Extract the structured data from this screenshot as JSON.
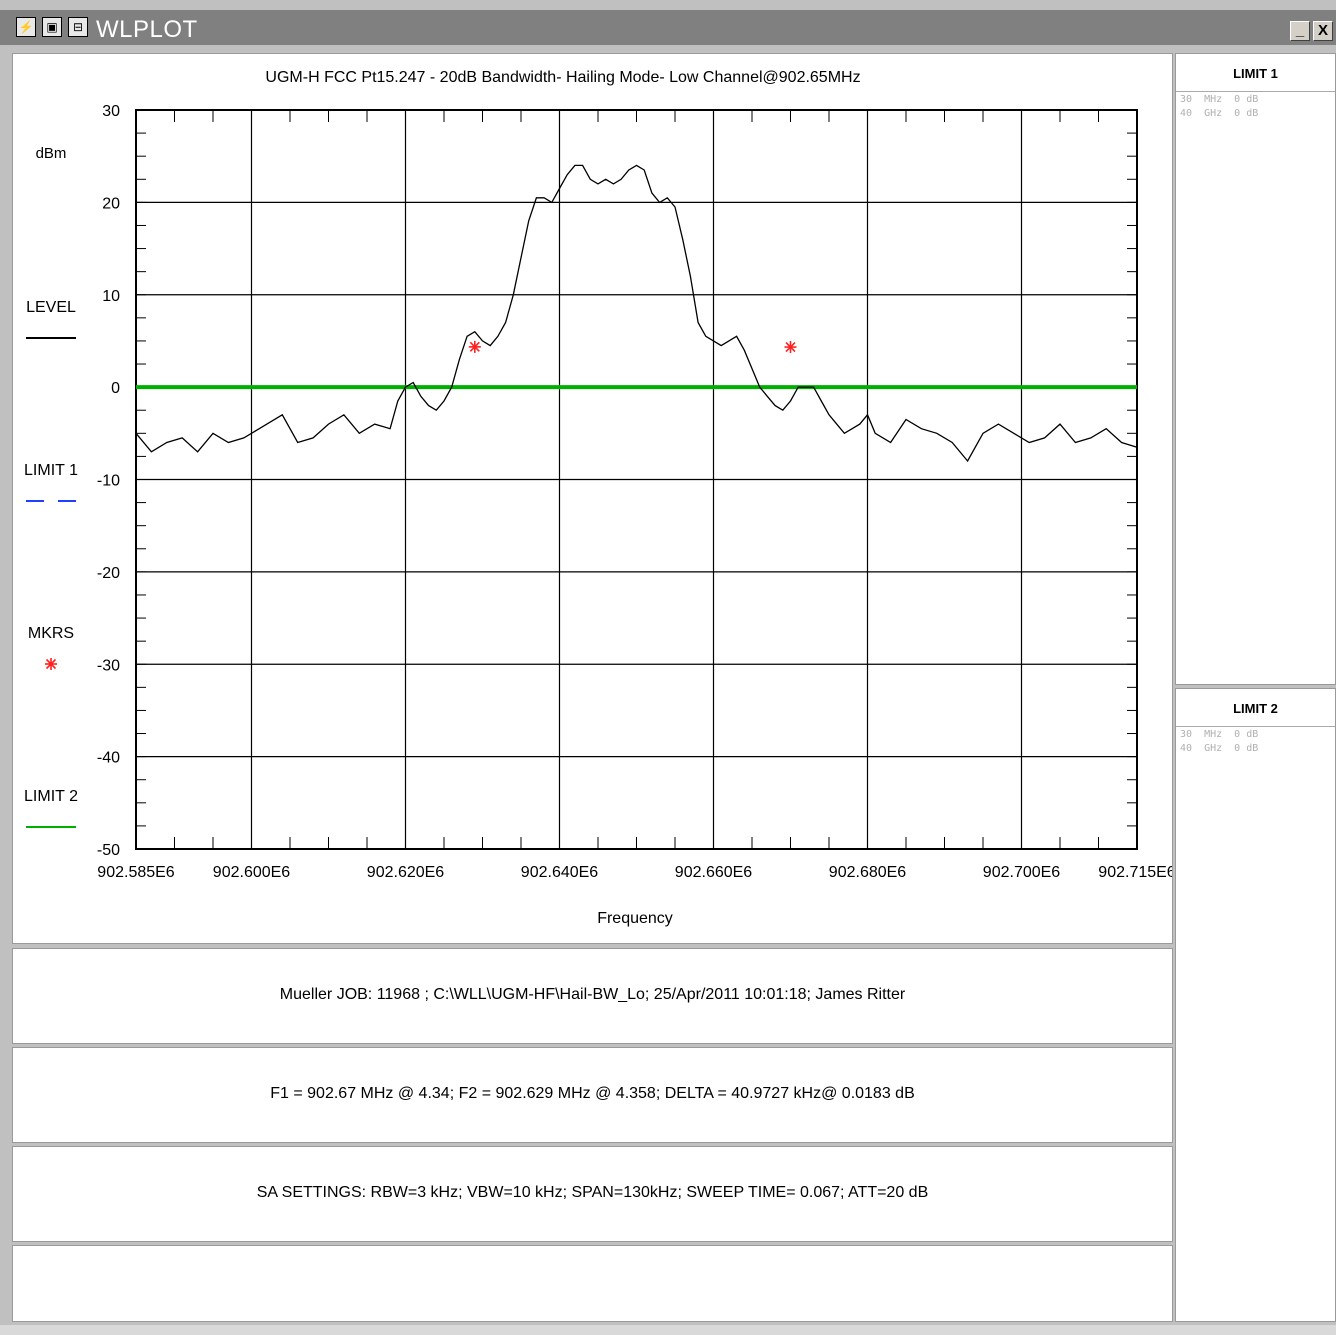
{
  "window": {
    "title": "WLPLOT",
    "title_icons": [
      "chart-app-icon",
      "window-icon",
      "restore-icon"
    ],
    "minimize_label": "_",
    "close_label": "X"
  },
  "chart_data": {
    "type": "line",
    "title": "UGM-H FCC Pt15.247 - 20dB Bandwidth- Hailing Mode- Low Channel@902.65MHz",
    "xlabel": "Frequency",
    "ylabel": "dBm",
    "xlim": [
      902.585,
      902.715
    ],
    "ylim": [
      -50,
      30
    ],
    "y_ticks": [
      30,
      20,
      10,
      0,
      -10,
      -20,
      -30,
      -40,
      -50
    ],
    "x_tick_labels": [
      {
        "x": 902.585,
        "label": "902.585E6"
      },
      {
        "x": 902.6,
        "label": "902.600E6"
      },
      {
        "x": 902.62,
        "label": "902.620E6"
      },
      {
        "x": 902.64,
        "label": "902.640E6"
      },
      {
        "x": 902.66,
        "label": "902.660E6"
      },
      {
        "x": 902.68,
        "label": "902.680E6"
      },
      {
        "x": 902.7,
        "label": "902.700E6"
      },
      {
        "x": 902.715,
        "label": "902.715E6"
      }
    ],
    "grid": true,
    "series": [
      {
        "name": "LEVEL",
        "color": "#000000",
        "x": [
          902.585,
          902.587,
          902.589,
          902.591,
          902.593,
          902.595,
          902.597,
          902.599,
          902.601,
          902.602,
          902.604,
          902.606,
          902.608,
          902.61,
          902.612,
          902.614,
          902.616,
          902.618,
          902.619,
          902.62,
          902.621,
          902.622,
          902.623,
          902.624,
          902.625,
          902.626,
          902.627,
          902.628,
          902.629,
          902.63,
          902.631,
          902.632,
          902.633,
          902.634,
          902.635,
          902.636,
          902.637,
          902.638,
          902.639,
          902.64,
          902.641,
          902.642,
          902.643,
          902.644,
          902.645,
          902.646,
          902.647,
          902.648,
          902.649,
          902.65,
          902.651,
          902.652,
          902.653,
          902.654,
          902.655,
          902.656,
          902.657,
          902.658,
          902.659,
          902.66,
          902.661,
          902.662,
          902.663,
          902.664,
          902.665,
          902.666,
          902.667,
          902.668,
          902.669,
          902.67,
          902.671,
          902.672,
          902.673,
          902.674,
          902.675,
          902.676,
          902.677,
          902.678,
          902.679,
          902.68,
          902.681,
          902.683,
          902.685,
          902.687,
          902.689,
          902.691,
          902.693,
          902.695,
          902.697,
          902.699,
          902.701,
          902.703,
          902.705,
          902.707,
          902.709,
          902.711,
          902.713,
          902.715
        ],
        "y": [
          -5,
          -7,
          -6,
          -5.5,
          -7,
          -5,
          -6,
          -5.5,
          -4.5,
          -4,
          -3,
          -6,
          -5.5,
          -4,
          -3,
          -5,
          -4,
          -4.5,
          -1.5,
          0,
          0.5,
          -1,
          -2,
          -2.5,
          -1.5,
          0,
          3,
          5.5,
          6,
          5,
          4.5,
          5.5,
          7,
          10,
          14,
          18,
          20.5,
          20.5,
          20,
          21.5,
          23,
          24,
          24,
          22.5,
          22,
          22.5,
          22,
          22.5,
          23.5,
          24,
          23.5,
          21,
          20,
          20.5,
          19.5,
          16,
          12,
          7,
          5.5,
          5,
          4.5,
          5,
          5.5,
          4,
          2,
          0,
          -1,
          -2,
          -2.5,
          -1.5,
          0,
          0,
          0,
          -1.5,
          -3,
          -4,
          -5,
          -4.5,
          -4,
          -3,
          -5,
          -6,
          -3.5,
          -4.5,
          -5,
          -6,
          -8,
          -5,
          -4,
          -5,
          -6,
          -5.5,
          -4,
          -6,
          -5.5,
          -4.5,
          -6,
          -6.5
        ]
      },
      {
        "name": "LIMIT 1",
        "color": "#1e40ff",
        "style": "dashed",
        "x": [],
        "y": []
      },
      {
        "name": "LIMIT 2",
        "color": "#00b000",
        "style": "solid",
        "x": [
          902.585,
          902.715
        ],
        "y": [
          0,
          0
        ]
      }
    ],
    "markers": [
      {
        "x": 902.629,
        "y": 4.358
      },
      {
        "x": 902.67,
        "y": 4.34
      }
    ],
    "legend": [
      {
        "label": "LEVEL",
        "color": "#000000",
        "style": "solid"
      },
      {
        "label": "LIMIT 1",
        "color": "#1e40ff",
        "style": "dashed"
      },
      {
        "label": "MKRS",
        "color": "#ff2020",
        "style": "marker"
      },
      {
        "label": "LIMIT 2",
        "color": "#00b000",
        "style": "solid"
      }
    ],
    "legend_position": "left"
  },
  "info": {
    "job_line": "Mueller  JOB: 11968   ;  C:\\WLL\\UGM-HF\\Hail-BW_Lo;    25/Apr/2011 10:01:18; James Ritter",
    "marker_line": "F1 = 902.67 MHz @ 4.34;   F2 = 902.629 MHz @ 4.358;   DELTA = 40.9727 kHz@ 0.0183 dB",
    "settings_line": "SA SETTINGS: RBW=3 kHz; VBW=10 kHz; SPAN=130kHz; SWEEP TIME= 0.067; ATT=20 dB",
    "empty_line": ""
  },
  "limit1": {
    "title": "LIMIT 1",
    "entries": [
      "30  MHz  0 dB",
      "40  GHz  0 dB"
    ]
  },
  "limit2": {
    "title": "LIMIT 2",
    "entries": [
      "30  MHz  0 dB",
      "40  GHz  0 dB"
    ]
  }
}
